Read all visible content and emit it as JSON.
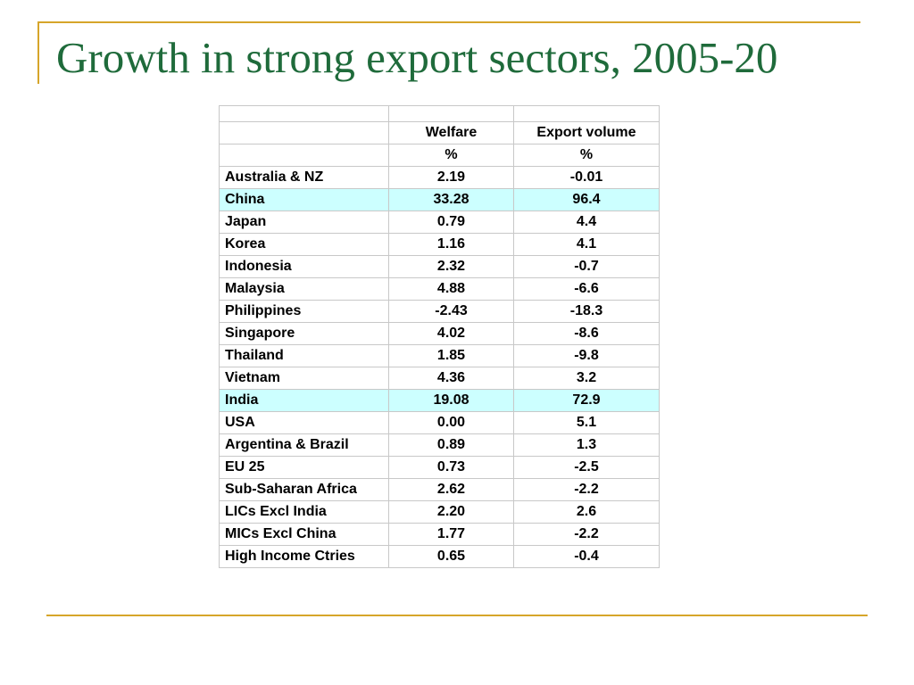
{
  "slide": {
    "title": "Growth in strong export sectors, 2005-20"
  },
  "table": {
    "headers": [
      "",
      "Welfare",
      "Export volume"
    ],
    "units": [
      "",
      "%",
      "%"
    ],
    "highlight_color": "#ccffff",
    "rows": [
      {
        "region": "Australia & NZ",
        "welfare": "2.19",
        "export_volume": "-0.01",
        "highlight": false
      },
      {
        "region": "China",
        "welfare": "33.28",
        "export_volume": "96.4",
        "highlight": true
      },
      {
        "region": "Japan",
        "welfare": "0.79",
        "export_volume": "4.4",
        "highlight": false
      },
      {
        "region": "Korea",
        "welfare": "1.16",
        "export_volume": "4.1",
        "highlight": false
      },
      {
        "region": "Indonesia",
        "welfare": "2.32",
        "export_volume": "-0.7",
        "highlight": false
      },
      {
        "region": "Malaysia",
        "welfare": "4.88",
        "export_volume": "-6.6",
        "highlight": false
      },
      {
        "region": "Philippines",
        "welfare": "-2.43",
        "export_volume": "-18.3",
        "highlight": false
      },
      {
        "region": "Singapore",
        "welfare": "4.02",
        "export_volume": "-8.6",
        "highlight": false
      },
      {
        "region": "Thailand",
        "welfare": "1.85",
        "export_volume": "-9.8",
        "highlight": false
      },
      {
        "region": "Vietnam",
        "welfare": "4.36",
        "export_volume": "3.2",
        "highlight": false
      },
      {
        "region": "India",
        "welfare": "19.08",
        "export_volume": "72.9",
        "highlight": true
      },
      {
        "region": "USA",
        "welfare": "0.00",
        "export_volume": "5.1",
        "highlight": false
      },
      {
        "region": "Argentina & Brazil",
        "welfare": "0.89",
        "export_volume": "1.3",
        "highlight": false
      },
      {
        "region": "EU 25",
        "welfare": "0.73",
        "export_volume": "-2.5",
        "highlight": false
      },
      {
        "region": "Sub-Saharan Africa",
        "welfare": "2.62",
        "export_volume": "-2.2",
        "highlight": false
      },
      {
        "region": "LICs Excl India",
        "welfare": "2.20",
        "export_volume": "2.6",
        "highlight": false
      },
      {
        "region": "MICs Excl  China",
        "welfare": "1.77",
        "export_volume": "-2.2",
        "highlight": false
      },
      {
        "region": "High Income Ctries",
        "welfare": "0.65",
        "export_volume": "-0.4",
        "highlight": false
      }
    ]
  }
}
